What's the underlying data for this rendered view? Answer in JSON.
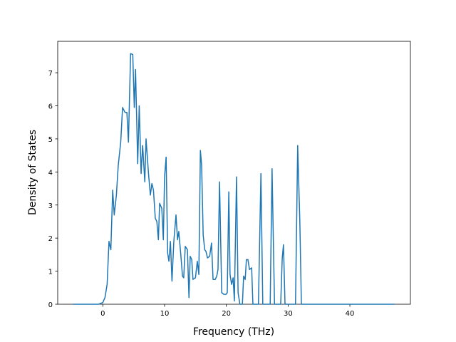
{
  "chart_data": {
    "type": "line",
    "xlabel": "Frequency (THz)",
    "ylabel": "Density of States",
    "xlim": [
      -7.3,
      49.8
    ],
    "ylim": [
      0,
      7.95
    ],
    "xticks": [
      0,
      10,
      20,
      30,
      40
    ],
    "yticks": [
      0,
      1,
      2,
      3,
      4,
      5,
      6,
      7
    ],
    "grid": false,
    "series": [
      {
        "color": "#1f77b4",
        "x": [
          -4.8,
          -0.7,
          0,
          0.35,
          0.7,
          1.0,
          1.3,
          1.6,
          1.85,
          2.2,
          2.5,
          2.9,
          3.2,
          3.6,
          3.9,
          4.15,
          4.5,
          4.85,
          5.1,
          5.3,
          5.65,
          5.9,
          6.2,
          6.45,
          6.8,
          7.0,
          7.4,
          7.7,
          7.95,
          8.2,
          8.5,
          8.75,
          9.0,
          9.2,
          9.55,
          9.8,
          10.0,
          10.25,
          10.5,
          10.7,
          10.95,
          11.2,
          11.5,
          11.85,
          12.1,
          12.3,
          12.65,
          12.9,
          13.1,
          13.35,
          13.7,
          13.95,
          14.15,
          14.4,
          14.6,
          15.0,
          15.3,
          15.55,
          15.8,
          16.0,
          16.25,
          16.5,
          16.7,
          16.95,
          17.3,
          17.6,
          17.85,
          18.2,
          18.45,
          18.65,
          18.9,
          19.25,
          19.6,
          19.95,
          20.15,
          20.4,
          20.6,
          20.85,
          21.1,
          21.3,
          21.65,
          21.9,
          22.2,
          22.6,
          22.8,
          23.05,
          23.25,
          23.5,
          23.75,
          24.1,
          24.3,
          25.2,
          25.6,
          25.9,
          27.1,
          27.4,
          27.8,
          28.8,
          29.05,
          29.25,
          29.5,
          31.2,
          31.55,
          31.9,
          32.15,
          47.2
        ],
        "values": [
          0,
          0,
          0.05,
          0.2,
          0.6,
          1.9,
          1.65,
          3.45,
          2.7,
          3.3,
          4.2,
          4.9,
          5.95,
          5.8,
          5.8,
          4.9,
          7.58,
          7.55,
          5.95,
          7.1,
          4.25,
          6.0,
          3.95,
          4.8,
          3.7,
          5.0,
          3.95,
          3.3,
          3.65,
          3.45,
          2.6,
          2.5,
          1.95,
          3.05,
          2.9,
          1.95,
          3.85,
          4.45,
          1.55,
          1.3,
          1.9,
          0.7,
          1.9,
          2.7,
          1.95,
          2.2,
          1.45,
          0.85,
          0.8,
          1.75,
          1.65,
          0.2,
          1.45,
          1.35,
          0.75,
          0.8,
          1.3,
          0.9,
          4.65,
          4.2,
          2.1,
          1.65,
          1.6,
          1.4,
          1.45,
          1.85,
          0.75,
          0.75,
          0.85,
          1.05,
          3.7,
          0.35,
          0.3,
          0.3,
          0.35,
          3.4,
          0.9,
          0.6,
          0.8,
          0.1,
          3.85,
          0.35,
          0,
          0,
          0.85,
          0.75,
          1.35,
          1.35,
          1.05,
          1.1,
          0,
          0,
          3.95,
          0,
          0,
          4.1,
          0,
          0,
          1.4,
          1.8,
          0,
          0,
          4.8,
          2.5,
          0,
          0
        ]
      }
    ]
  }
}
